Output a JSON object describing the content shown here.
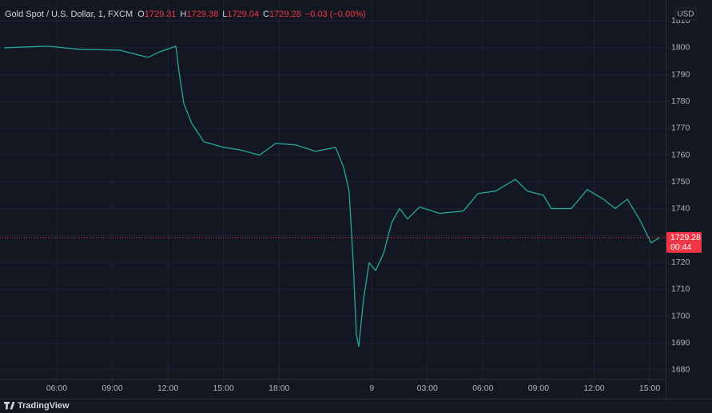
{
  "chart_data": {
    "type": "line",
    "title": "Gold Spot / U.S. Dollar, 1, FXCM",
    "ohlc": [
      {
        "label": "O",
        "value": 1729.31
      },
      {
        "label": "H",
        "value": 1729.38
      },
      {
        "label": "L",
        "value": 1729.04
      },
      {
        "label": "C",
        "value": 1729.28
      }
    ],
    "change": "−0.03 (−0.00%)",
    "currency": "USD",
    "last_price": 1729.28,
    "countdown": "00:44",
    "brand": "TradingView",
    "color": "#26a69a",
    "last_color": "#f23645",
    "grid": true,
    "x": [
      3.16,
      5.53,
      7.25,
      9.41,
      10.92,
      11.56,
      12.43,
      12.6,
      12.86,
      13.29,
      13.94,
      15.01,
      15.88,
      16.95,
      17.82,
      18.9,
      19.97,
      21.05,
      21.48,
      21.78,
      22,
      22.17,
      22.3,
      22.56,
      22.86,
      23.21,
      23.64,
      24.07,
      24.5,
      24.93,
      25.58,
      26.66,
      27.95,
      28.73,
      29.68,
      30.75,
      31.4,
      32.26,
      32.69,
      33.77,
      34.63,
      35.5,
      36.14,
      36.79,
      37.44,
      38.08,
      38.52
    ],
    "values": [
      1800,
      1800.6,
      1799.4,
      1799.1,
      1796.4,
      1798.5,
      1800.6,
      1791.1,
      1779.2,
      1771.8,
      1765,
      1762.9,
      1762,
      1760,
      1764.4,
      1763.8,
      1761.4,
      1762.9,
      1755.5,
      1746.6,
      1719.9,
      1693.2,
      1688.7,
      1706.5,
      1719.9,
      1717,
      1723.4,
      1734.7,
      1740.1,
      1736.2,
      1740.7,
      1738.3,
      1739.2,
      1745.7,
      1746.6,
      1751,
      1746.6,
      1745.1,
      1740.1,
      1740.1,
      1747.2,
      1743.6,
      1740.1,
      1743.6,
      1736.2,
      1727.3,
      1729.3
    ],
    "xlim": [
      2.94,
      38.86
    ],
    "xticks": [
      {
        "value": 6,
        "label": "06:00"
      },
      {
        "value": 9,
        "label": "09:00"
      },
      {
        "value": 12,
        "label": "12:00"
      },
      {
        "value": 15,
        "label": "15:00"
      },
      {
        "value": 18,
        "label": "18:00"
      },
      {
        "value": 23,
        "label": "9"
      },
      {
        "value": 26,
        "label": "03:00"
      },
      {
        "value": 29,
        "label": "06:00"
      },
      {
        "value": 32,
        "label": "09:00"
      },
      {
        "value": 35,
        "label": "12:00"
      },
      {
        "value": 38,
        "label": "15:00"
      }
    ],
    "ylim": [
      1676.7,
      1817.8
    ],
    "yticks": [
      1680,
      1690,
      1700,
      1710,
      1720,
      1730,
      1740,
      1750,
      1760,
      1770,
      1780,
      1790,
      1800,
      1810
    ]
  }
}
